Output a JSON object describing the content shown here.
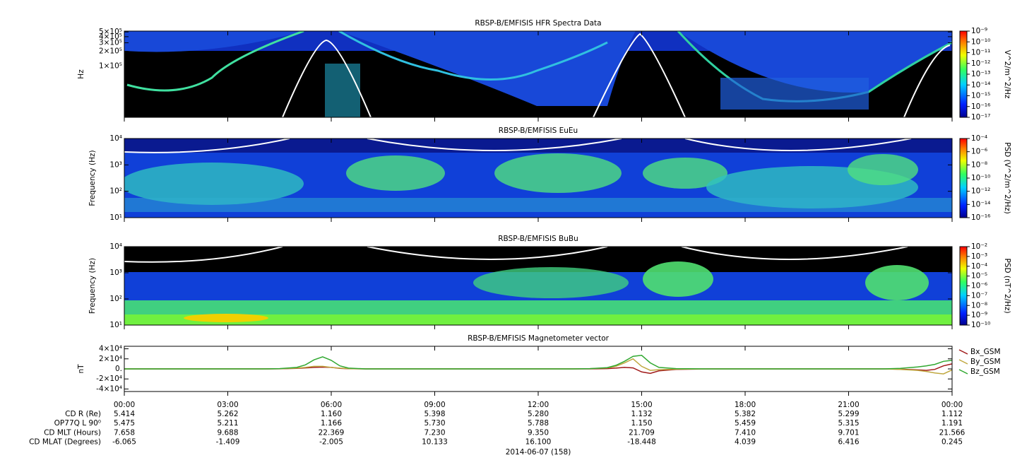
{
  "chart_data": [
    {
      "type": "heatmap",
      "title": "RBSP-B/EMFISIS  HFR Spectra Data",
      "ylabel": "Hz",
      "log_y": true,
      "xlim": [
        0,
        24
      ],
      "ylim": [
        9000,
        520000
      ],
      "yticks": [
        {
          "value": 500000,
          "label": "5×10⁵"
        },
        {
          "value": 400000,
          "label": "4×10⁵"
        },
        {
          "value": 300000,
          "label": "3×10⁵"
        },
        {
          "value": 200000,
          "label": "2×10⁵"
        },
        {
          "value": 100000,
          "label": "1×10⁵"
        }
      ],
      "colorbar": {
        "label": "V^2/m^2/Hz",
        "lim": [
          1e-17,
          1e-09
        ],
        "ticks": [
          {
            "value": 1e-09,
            "label": "10⁻⁹"
          },
          {
            "value": 1e-10,
            "label": "10⁻¹⁰"
          },
          {
            "value": 1e-11,
            "label": "10⁻¹¹"
          },
          {
            "value": 1e-12,
            "label": "10⁻¹²"
          },
          {
            "value": 1e-13,
            "label": "10⁻¹³"
          },
          {
            "value": 1e-14,
            "label": "10⁻¹⁴"
          },
          {
            "value": 1e-15,
            "label": "10⁻¹⁵"
          },
          {
            "value": 1e-16,
            "label": "10⁻¹⁶"
          },
          {
            "value": 1e-17,
            "label": "10⁻¹⁷"
          }
        ]
      }
    },
    {
      "type": "heatmap",
      "title": "RBSP-B/EMFISIS  EuEu",
      "ylabel": "Frequency (Hz)",
      "log_y": true,
      "xlim": [
        0,
        24
      ],
      "ylim": [
        10,
        10000
      ],
      "yticks": [
        {
          "value": 10,
          "label": "10¹"
        },
        {
          "value": 100,
          "label": "10²"
        },
        {
          "value": 1000,
          "label": "10³"
        },
        {
          "value": 10000,
          "label": "10⁴"
        }
      ],
      "colorbar": {
        "label": "PSD (V^2/m^2/Hz)",
        "lim": [
          1e-16,
          0.0001
        ],
        "ticks": [
          {
            "value": 0.0001,
            "label": "10⁻⁴"
          },
          {
            "value": 1e-06,
            "label": "10⁻⁶"
          },
          {
            "value": 1e-08,
            "label": "10⁻⁸"
          },
          {
            "value": 1e-10,
            "label": "10⁻¹⁰"
          },
          {
            "value": 1e-12,
            "label": "10⁻¹²"
          },
          {
            "value": 1e-14,
            "label": "10⁻¹⁴"
          },
          {
            "value": 1e-16,
            "label": "10⁻¹⁶"
          }
        ]
      }
    },
    {
      "type": "heatmap",
      "title": "RBSP-B/EMFISIS  BuBu",
      "ylabel": "Frequency (Hz)",
      "log_y": true,
      "xlim": [
        0,
        24
      ],
      "ylim": [
        10,
        10000
      ],
      "yticks": [
        {
          "value": 10,
          "label": "10¹"
        },
        {
          "value": 100,
          "label": "10²"
        },
        {
          "value": 1000,
          "label": "10³"
        },
        {
          "value": 10000,
          "label": "10⁴"
        }
      ],
      "colorbar": {
        "label": "PSD (nT^2/Hz)",
        "lim": [
          1e-10,
          0.01
        ],
        "ticks": [
          {
            "value": 0.01,
            "label": "10⁻²"
          },
          {
            "value": 0.001,
            "label": "10⁻³"
          },
          {
            "value": 0.0001,
            "label": "10⁻⁴"
          },
          {
            "value": 1e-05,
            "label": "10⁻⁵"
          },
          {
            "value": 1e-06,
            "label": "10⁻⁶"
          },
          {
            "value": 1e-07,
            "label": "10⁻⁷"
          },
          {
            "value": 1e-08,
            "label": "10⁻⁸"
          },
          {
            "value": 1e-09,
            "label": "10⁻⁹"
          },
          {
            "value": 1e-10,
            "label": "10⁻¹⁰"
          }
        ]
      }
    },
    {
      "type": "line",
      "title": "RBSP-B/EMFISIS  Magnetometer vector",
      "ylabel": "nT",
      "xlim": [
        0,
        24
      ],
      "ylim": [
        -45000,
        45000
      ],
      "xticks": [
        {
          "value": 0,
          "label": "00:00"
        },
        {
          "value": 3,
          "label": "03:00"
        },
        {
          "value": 6,
          "label": "06:00"
        },
        {
          "value": 9,
          "label": "09:00"
        },
        {
          "value": 12,
          "label": "12:00"
        },
        {
          "value": 15,
          "label": "15:00"
        },
        {
          "value": 18,
          "label": "18:00"
        },
        {
          "value": 21,
          "label": "21:00"
        },
        {
          "value": 24,
          "label": "00:00"
        }
      ],
      "yticks": [
        {
          "value": 40000,
          "label": "4×10⁴"
        },
        {
          "value": 20000,
          "label": "2×10⁴"
        },
        {
          "value": 0,
          "label": "0."
        },
        {
          "value": -20000,
          "label": "-2×10⁴"
        },
        {
          "value": -40000,
          "label": "-4×10⁴"
        }
      ],
      "x": [
        0,
        4,
        4.5,
        5,
        5.25,
        5.5,
        5.75,
        6,
        6.25,
        6.5,
        7,
        8,
        13,
        13.5,
        14,
        14.25,
        14.5,
        14.75,
        15,
        15.25,
        15.5,
        16,
        17,
        22,
        22.5,
        23,
        23.25,
        23.5,
        23.75,
        24
      ],
      "series": [
        {
          "name": "Bx_GSM",
          "color": "#a01818",
          "values": [
            0,
            0,
            200,
            1000,
            2000,
            3000,
            3500,
            3000,
            1000,
            300,
            0,
            0,
            0,
            0,
            500,
            1500,
            3000,
            2000,
            -6000,
            -9000,
            -4000,
            -1000,
            0,
            0,
            -500,
            -2000,
            -3000,
            -1000,
            6000,
            10000
          ]
        },
        {
          "name": "By_GSM",
          "color": "#c0a840",
          "values": [
            0,
            0,
            300,
            1500,
            3000,
            5000,
            5000,
            3000,
            1500,
            500,
            0,
            0,
            0,
            500,
            2000,
            5000,
            12000,
            20000,
            5000,
            -3000,
            -1500,
            -500,
            0,
            0,
            -1000,
            -3000,
            -5000,
            -8000,
            -10000,
            -2000
          ]
        },
        {
          "name": "Bz_GSM",
          "color": "#30a830",
          "values": [
            0,
            0,
            500,
            3000,
            8000,
            18000,
            24000,
            17000,
            6000,
            1500,
            0,
            0,
            0,
            500,
            2500,
            7000,
            15000,
            25000,
            27000,
            12000,
            3000,
            500,
            0,
            0,
            1000,
            4000,
            6000,
            9000,
            15000,
            17000
          ]
        }
      ]
    }
  ],
  "ephemeris": {
    "date": "2014-06-07 (158)",
    "rows": [
      {
        "label": "CD R (Re)",
        "values": [
          "5.414",
          "5.262",
          "1.160",
          "5.398",
          "5.280",
          "1.132",
          "5.382",
          "5.299",
          "1.112"
        ]
      },
      {
        "label": "OP77Q L 90⁰",
        "values": [
          "5.475",
          "5.211",
          "1.166",
          "5.730",
          "5.788",
          "1.150",
          "5.459",
          "5.315",
          "1.191"
        ]
      },
      {
        "label": "CD MLT (Hours)",
        "values": [
          "7.658",
          "9.688",
          "22.369",
          "7.230",
          "9.350",
          "21.709",
          "7.410",
          "9.701",
          "21.566"
        ]
      },
      {
        "label": "CD MLAT (Degrees)",
        "values": [
          "-6.065",
          "-1.409",
          "-2.005",
          "10.133",
          "16.100",
          "-18.448",
          "4.039",
          "6.416",
          "0.245"
        ]
      }
    ]
  }
}
